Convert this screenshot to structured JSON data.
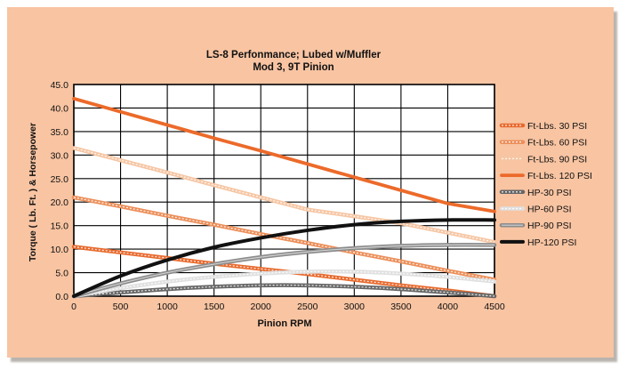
{
  "chart_data": {
    "type": "line",
    "title": "LS-8 Perfonmance; Lubed w/Muffler",
    "subtitle": "Mod 3, 9T Pinion",
    "xlabel": "Pinion RPM",
    "ylabel": "Torque ( Lb. Ft. ) & Horsepower",
    "xlim": [
      0,
      4500
    ],
    "ylim": [
      0,
      45
    ],
    "x_ticks": [
      "0",
      "500",
      "1000",
      "1500",
      "2000",
      "2500",
      "3000",
      "3500",
      "4000",
      "4500"
    ],
    "y_ticks": [
      "0.0",
      "5.0",
      "10.0",
      "15.0",
      "20.0",
      "25.0",
      "30.0",
      "35.0",
      "40.0",
      "45.0"
    ],
    "grid": true,
    "legend_position": "right",
    "x": [
      0,
      500,
      1000,
      1500,
      2000,
      2500,
      3000,
      3500,
      4000,
      4500
    ],
    "series": [
      {
        "name": "Ft-Lbs. 30 PSI",
        "color": "#e86a2e",
        "style": "double",
        "values": [
          10.5,
          9.3,
          8.1,
          6.9,
          5.8,
          4.7,
          3.5,
          2.3,
          1.2,
          0.0
        ]
      },
      {
        "name": "Ft-Lbs. 60 PSI",
        "color": "#ec8f5a",
        "style": "double",
        "values": [
          21.0,
          19.1,
          17.1,
          15.2,
          13.2,
          11.3,
          9.3,
          7.4,
          5.4,
          3.5
        ]
      },
      {
        "name": "Ft-Lbs. 90 PSI",
        "color": "#f6c6a4",
        "style": "double",
        "values": [
          31.5,
          28.9,
          26.3,
          23.6,
          21.0,
          18.4,
          17.0,
          15.5,
          13.5,
          11.5
        ]
      },
      {
        "name": "Ft-Lbs. 120 PSI",
        "color": "#ec6a2a",
        "style": "solid",
        "values": [
          42.0,
          39.2,
          36.4,
          33.6,
          30.9,
          28.1,
          25.3,
          22.5,
          19.7,
          18.0
        ]
      },
      {
        "name": "HP-30 PSI",
        "color": "#666666",
        "style": "double",
        "values": [
          0.0,
          0.8,
          1.5,
          2.0,
          2.3,
          2.3,
          2.0,
          1.5,
          0.8,
          0.0
        ]
      },
      {
        "name": "HP-60 PSI",
        "color": "#e0e0e0",
        "style": "double",
        "values": [
          0.0,
          1.7,
          3.1,
          4.1,
          4.8,
          5.2,
          5.2,
          4.8,
          4.1,
          3.1
        ]
      },
      {
        "name": "HP-90 PSI",
        "color": "#8c8c8c",
        "style": "thick-gray",
        "values": [
          0.0,
          2.7,
          5.0,
          6.8,
          8.3,
          9.4,
          10.2,
          10.7,
          10.9,
          10.9
        ]
      },
      {
        "name": "HP-120 PSI",
        "color": "#111111",
        "style": "solid-thick",
        "values": [
          0.0,
          4.3,
          7.7,
          10.4,
          12.4,
          14.0,
          15.2,
          15.9,
          16.2,
          16.2
        ]
      }
    ]
  },
  "colors": {
    "background": "#f8c4a2",
    "plot_area": "#ffffff",
    "grid": "#000000"
  }
}
